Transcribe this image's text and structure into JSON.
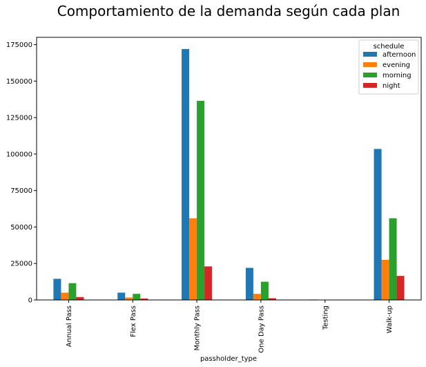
{
  "chart_data": {
    "type": "bar",
    "title": "Comportamiento de la demanda según cada plan",
    "xlabel": "passholder_type",
    "ylabel": "",
    "categories": [
      "Annual Pass",
      "Flex Pass",
      "Monthly Pass",
      "One Day Pass",
      "Testing",
      "Walk-up"
    ],
    "series": [
      {
        "name": "afternoon",
        "color": "#1f77b4",
        "values": [
          14500,
          5000,
          172000,
          22000,
          300,
          103500
        ]
      },
      {
        "name": "evening",
        "color": "#ff7f0e",
        "values": [
          5000,
          1700,
          56000,
          4200,
          50,
          27500
        ]
      },
      {
        "name": "morning",
        "color": "#2ca02c",
        "values": [
          11500,
          4200,
          136500,
          12500,
          200,
          56000
        ]
      },
      {
        "name": "night",
        "color": "#d62728",
        "values": [
          2000,
          1000,
          23000,
          1200,
          30,
          16500
        ]
      }
    ],
    "ylim": [
      0,
      180000
    ],
    "yticks": [
      0,
      25000,
      50000,
      75000,
      100000,
      125000,
      150000,
      175000
    ],
    "grid": false,
    "legend": {
      "title": "schedule",
      "placement": "top-right"
    }
  }
}
